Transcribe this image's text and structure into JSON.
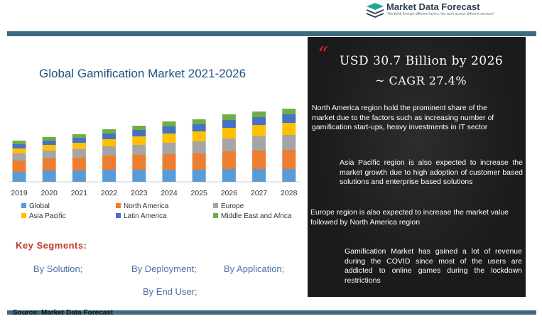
{
  "brand": {
    "name": "Market Data Forecast",
    "tagline": "\"We think through different layers, the work across different services\"",
    "colors": {
      "dark": "#2b3e50",
      "teal": "#2aa198",
      "bar": "#3c6a80"
    }
  },
  "chart_data": {
    "type": "bar",
    "stacked": true,
    "title": "Global Gamification Market 2021-2026",
    "categories": [
      "2019",
      "2020",
      "2021",
      "2022",
      "2023",
      "2024",
      "2025",
      "2026",
      "2027",
      "2028"
    ],
    "series": [
      {
        "name": "Global",
        "color": "#5b9bd5",
        "values": [
          14,
          16,
          16,
          17,
          17,
          17,
          17,
          18,
          18,
          18
        ]
      },
      {
        "name": "North America",
        "color": "#ed7d31",
        "values": [
          16,
          17,
          18,
          20,
          21,
          22,
          23,
          25,
          26,
          27
        ]
      },
      {
        "name": "Europe",
        "color": "#a5a5a5",
        "values": [
          10,
          11,
          12,
          13,
          14,
          16,
          17,
          18,
          20,
          21
        ]
      },
      {
        "name": "Asia Pacific",
        "color": "#ffc000",
        "values": [
          7,
          8,
          9,
          10,
          12,
          13,
          14,
          15,
          16,
          17
        ]
      },
      {
        "name": "Latin America",
        "color": "#4472c4",
        "values": [
          6,
          6,
          7,
          8,
          9,
          10,
          10,
          11,
          11,
          12
        ]
      },
      {
        "name": "Middle East and Africa",
        "color": "#70ad47",
        "values": [
          5,
          5,
          5,
          6,
          6,
          7,
          7,
          8,
          8,
          8
        ]
      }
    ],
    "ylim": [
      0,
      110
    ],
    "grid": false,
    "legend_position": "bottom"
  },
  "key_segments": {
    "title": "Key Segments:",
    "items": [
      "By Solution;",
      "By Deployment;",
      "By Application;",
      "By End User;"
    ]
  },
  "panel": {
    "quote_mark": "“",
    "headline_1": "USD 30.7 Billion by 2026",
    "headline_2": "~ CAGR 27.4%",
    "paragraphs": [
      "North America region hold the prominent share of the market due to the factors such as increasing number of gamification start-ups, heavy investments in IT sector",
      "Asia Pacific region is also expected to increase the market growth due to high adoption of customer based solutions and enterprise based solutions",
      "Europe region is also expected to increase the market value followed by North America region",
      "Gamification Market has gained a lot of revenue during the COVID since most of the users are addicted to online games during the lockdown restrictions"
    ]
  },
  "source": "Source: Market Data Forecast"
}
